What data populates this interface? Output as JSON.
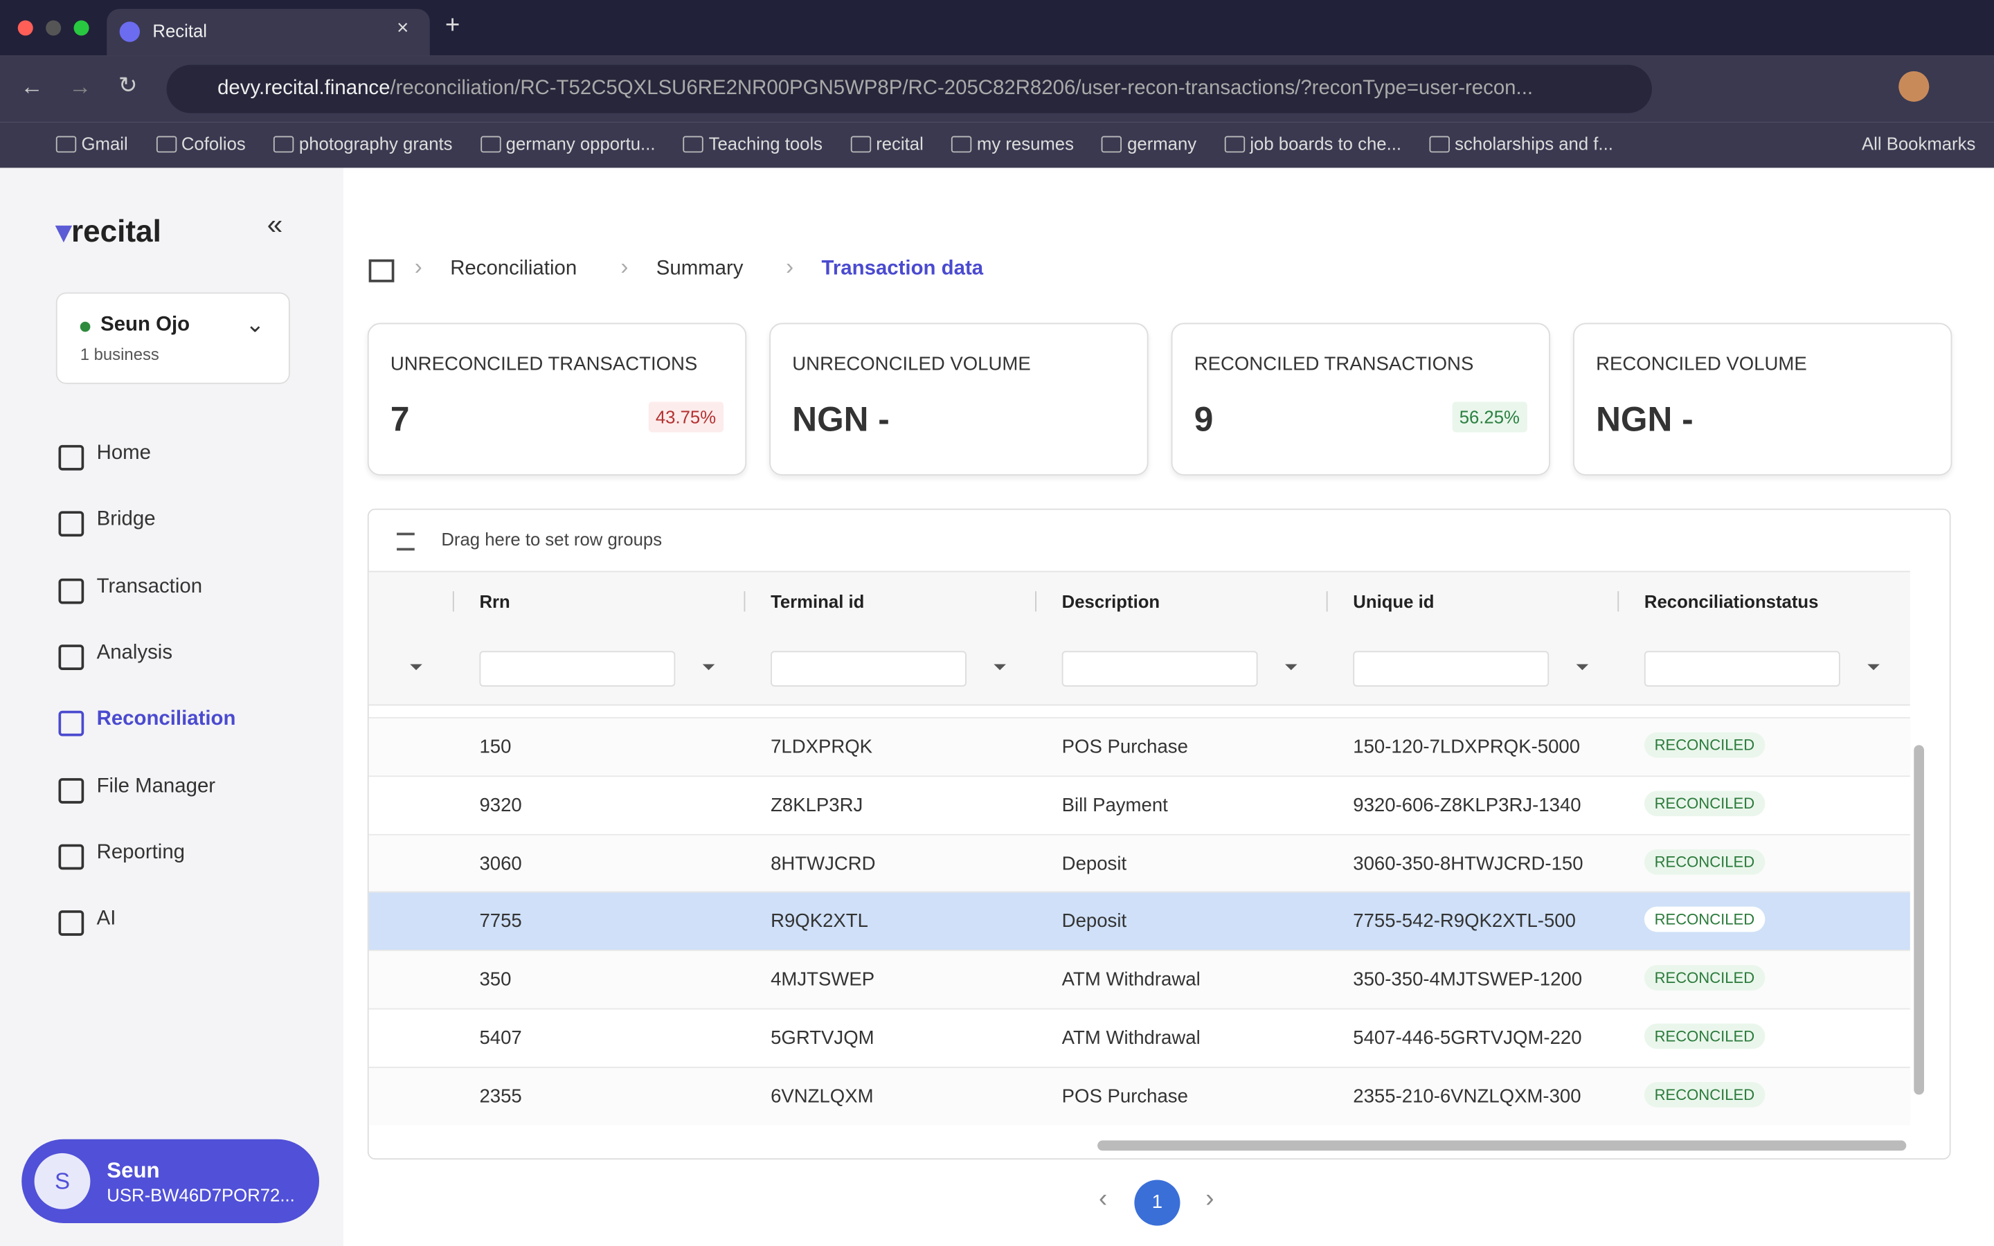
{
  "browser": {
    "tab_title": "Recital",
    "url_host": "devy.recital.finance",
    "url_path": "/reconciliation/RC-T52C5QXLSU6RE2NR00PGN5WP8P/RC-205C82R8206/user-recon-transactions/?reconType=user-recon...",
    "bookmarks": [
      "Gmail",
      "Cofolios",
      "photography grants",
      "germany opportu...",
      "Teaching tools",
      "recital",
      "my resumes",
      "germany",
      "job boards to che...",
      "scholarships and f..."
    ],
    "all_bookmarks": "All Bookmarks"
  },
  "sidebar": {
    "brand": "recital",
    "account": {
      "name": "Seun Ojo",
      "sub": "1 business"
    },
    "nav": [
      {
        "label": "Home"
      },
      {
        "label": "Bridge"
      },
      {
        "label": "Transaction"
      },
      {
        "label": "Analysis"
      },
      {
        "label": "Reconciliation",
        "active": true
      },
      {
        "label": "File Manager"
      },
      {
        "label": "Reporting"
      },
      {
        "label": "AI"
      }
    ],
    "user": {
      "initial": "S",
      "name": "Seun",
      "id": "USR-BW46D7POR72..."
    }
  },
  "breadcrumbs": [
    "Reconciliation",
    "Summary",
    "Transaction data"
  ],
  "cards": [
    {
      "label": "UNRECONCILED TRANSACTIONS",
      "value": "7",
      "badge": "43.75%",
      "tone": "red"
    },
    {
      "label": "UNRECONCILED VOLUME",
      "value": "NGN -"
    },
    {
      "label": "RECONCILED TRANSACTIONS",
      "value": "9",
      "badge": "56.25%",
      "tone": "green"
    },
    {
      "label": "RECONCILED VOLUME",
      "value": "NGN -"
    }
  ],
  "table": {
    "group_hint": "Drag here to set row groups",
    "columns": [
      "Rrn",
      "Terminal id",
      "Description",
      "Unique id",
      "Reconciliationstatus"
    ],
    "selected_row": 3,
    "rows": [
      [
        "150",
        "7LDXPRQK",
        "POS Purchase",
        "150-120-7LDXPRQK-5000",
        "RECONCILED"
      ],
      [
        "9320",
        "Z8KLP3RJ",
        "Bill Payment",
        "9320-606-Z8KLP3RJ-1340",
        "RECONCILED"
      ],
      [
        "3060",
        "8HTWJCRD",
        "Deposit",
        "3060-350-8HTWJCRD-150",
        "RECONCILED"
      ],
      [
        "7755",
        "R9QK2XTL",
        "Deposit",
        "7755-542-R9QK2XTL-500",
        "RECONCILED"
      ],
      [
        "350",
        "4MJTSWEP",
        "ATM Withdrawal",
        "350-350-4MJTSWEP-1200",
        "RECONCILED"
      ],
      [
        "5407",
        "5GRTVJQM",
        "ATM Withdrawal",
        "5407-446-5GRTVJQM-220",
        "RECONCILED"
      ],
      [
        "2355",
        "6VNZLQXM",
        "POS Purchase",
        "2355-210-6VNZLQXM-300",
        "RECONCILED"
      ]
    ]
  },
  "pagination": {
    "page": "1"
  }
}
